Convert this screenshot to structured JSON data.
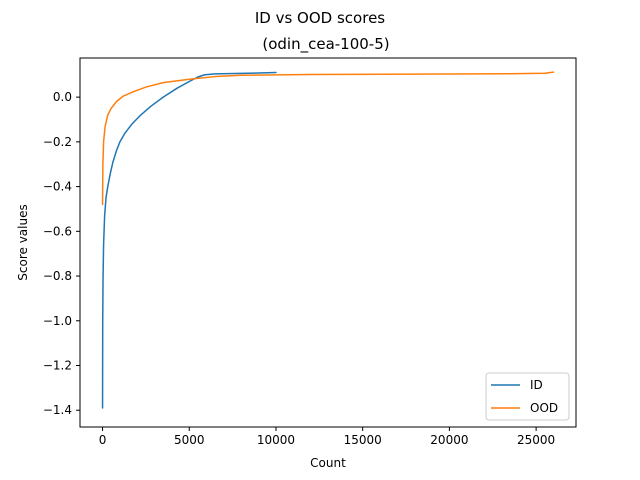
{
  "chart_data": {
    "type": "line",
    "title": "ID vs OOD scores",
    "subtitle": "(odin_cea-100-5)",
    "xlabel": "Count",
    "ylabel": "Score values",
    "xlim": [
      -1300,
      27300
    ],
    "ylim": [
      -1.475,
      0.175
    ],
    "xticks": [
      0,
      5000,
      10000,
      15000,
      20000,
      25000
    ],
    "yticks": [
      0.0,
      -0.2,
      -0.4,
      -0.6,
      -0.8,
      -1.0,
      -1.2,
      -1.4
    ],
    "xtick_labels": [
      "0",
      "5000",
      "10000",
      "15000",
      "20000",
      "25000"
    ],
    "ytick_labels": [
      "0.0",
      "−0.2",
      "−0.4",
      "−0.6",
      "−0.8",
      "−1.0",
      "−1.2",
      "−1.4"
    ],
    "grid": false,
    "legend_position": "lower-right",
    "series": [
      {
        "name": "ID",
        "color": "#1f77b4",
        "points": [
          [
            0,
            -1.39
          ],
          [
            10,
            -1.0
          ],
          [
            30,
            -0.8
          ],
          [
            60,
            -0.66
          ],
          [
            120,
            -0.53
          ],
          [
            200,
            -0.45
          ],
          [
            300,
            -0.4
          ],
          [
            450,
            -0.34
          ],
          [
            600,
            -0.29
          ],
          [
            800,
            -0.24
          ],
          [
            1000,
            -0.2
          ],
          [
            1300,
            -0.16
          ],
          [
            1700,
            -0.12
          ],
          [
            2200,
            -0.08
          ],
          [
            2800,
            -0.04
          ],
          [
            3500,
            0.0
          ],
          [
            4300,
            0.04
          ],
          [
            5000,
            0.07
          ],
          [
            5500,
            0.09
          ],
          [
            5900,
            0.1
          ],
          [
            6500,
            0.104
          ],
          [
            8000,
            0.106
          ],
          [
            10000,
            0.11
          ]
        ]
      },
      {
        "name": "OOD",
        "color": "#ff7f0e",
        "points": [
          [
            0,
            -0.48
          ],
          [
            20,
            -0.3
          ],
          [
            60,
            -0.2
          ],
          [
            150,
            -0.13
          ],
          [
            300,
            -0.08
          ],
          [
            500,
            -0.05
          ],
          [
            800,
            -0.02
          ],
          [
            1200,
            0.005
          ],
          [
            1800,
            0.025
          ],
          [
            2500,
            0.045
          ],
          [
            3500,
            0.065
          ],
          [
            5000,
            0.08
          ],
          [
            6500,
            0.092
          ],
          [
            8000,
            0.098
          ],
          [
            12000,
            0.101
          ],
          [
            18000,
            0.103
          ],
          [
            24000,
            0.105
          ],
          [
            25500,
            0.107
          ],
          [
            26000,
            0.112
          ]
        ]
      }
    ]
  }
}
